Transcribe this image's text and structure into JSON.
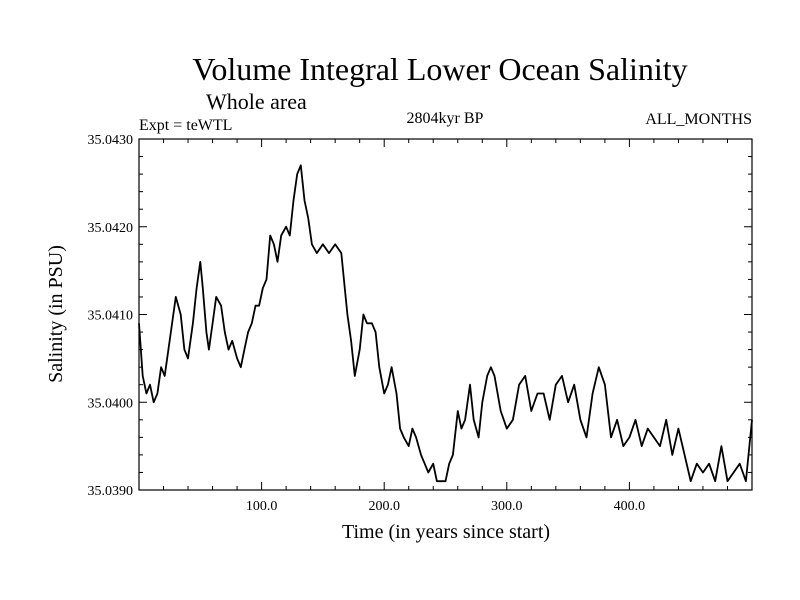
{
  "chart_data": {
    "type": "line",
    "title": "Volume Integral Lower Ocean Salinity",
    "subtitle": "Whole area",
    "experiment_label": "Expt = teWTL",
    "period_label": "2804kyr BP",
    "months_label": "ALL_MONTHS",
    "xlabel": "Time (in years since start)",
    "ylabel": "Salinity (in PSU)",
    "xlim": [
      0,
      500
    ],
    "ylim": [
      35.039,
      35.043
    ],
    "x_ticks": [
      100,
      200,
      300,
      400
    ],
    "x_tick_labels": [
      "100.0",
      "200.0",
      "300.0",
      "400.0"
    ],
    "y_ticks": [
      35.039,
      35.04,
      35.041,
      35.042,
      35.043
    ],
    "y_tick_labels": [
      "35.0390",
      "35.0400",
      "35.0410",
      "35.0420",
      "35.0430"
    ],
    "grid": false,
    "line_color": "#000000",
    "series": [
      {
        "name": "Salinity",
        "x": [
          0,
          3,
          6,
          9,
          12,
          15,
          18,
          21,
          24,
          27,
          30,
          34,
          37,
          40,
          44,
          47,
          50,
          52,
          55,
          57,
          60,
          63,
          67,
          70,
          73,
          76,
          80,
          83,
          86,
          89,
          92,
          95,
          98,
          101,
          104,
          107,
          110,
          113,
          116,
          120,
          123,
          126,
          129,
          132,
          135,
          138,
          141,
          145,
          150,
          155,
          160,
          165,
          170,
          173,
          176,
          180,
          183,
          186,
          190,
          193,
          196,
          200,
          203,
          206,
          210,
          213,
          216,
          220,
          223,
          226,
          230,
          233,
          236,
          240,
          243,
          246,
          250,
          253,
          256,
          260,
          263,
          266,
          270,
          273,
          277,
          280,
          284,
          287,
          290,
          295,
          300,
          305,
          310,
          315,
          320,
          325,
          330,
          335,
          340,
          345,
          350,
          355,
          360,
          365,
          370,
          375,
          380,
          385,
          390,
          395,
          400,
          405,
          410,
          415,
          420,
          425,
          430,
          435,
          440,
          445,
          450,
          455,
          460,
          465,
          470,
          475,
          480,
          485,
          490,
          495,
          500
        ],
        "values": [
          35.0409,
          35.0403,
          35.0401,
          35.0402,
          35.04,
          35.0401,
          35.0404,
          35.0403,
          35.0406,
          35.0409,
          35.0412,
          35.041,
          35.0406,
          35.0405,
          35.0409,
          35.0413,
          35.0416,
          35.0413,
          35.0408,
          35.0406,
          35.0409,
          35.0412,
          35.0411,
          35.0408,
          35.0406,
          35.0407,
          35.0405,
          35.0404,
          35.0406,
          35.0408,
          35.0409,
          35.0411,
          35.0411,
          35.0413,
          35.0414,
          35.0419,
          35.0418,
          35.0416,
          35.0419,
          35.042,
          35.0419,
          35.0423,
          35.0426,
          35.0427,
          35.0423,
          35.0421,
          35.0418,
          35.0417,
          35.0418,
          35.0417,
          35.0418,
          35.0417,
          35.041,
          35.0407,
          35.0403,
          35.0406,
          35.041,
          35.0409,
          35.0409,
          35.0408,
          35.0404,
          35.0401,
          35.0402,
          35.0404,
          35.0401,
          35.0397,
          35.0396,
          35.0395,
          35.0397,
          35.0396,
          35.0394,
          35.0393,
          35.0392,
          35.0393,
          35.0391,
          35.0391,
          35.0391,
          35.0393,
          35.0394,
          35.0399,
          35.0397,
          35.0398,
          35.0402,
          35.0398,
          35.0396,
          35.04,
          35.0403,
          35.0404,
          35.0403,
          35.0399,
          35.0397,
          35.0398,
          35.0402,
          35.0403,
          35.0399,
          35.0401,
          35.0401,
          35.0398,
          35.0402,
          35.0403,
          35.04,
          35.0402,
          35.0398,
          35.0396,
          35.0401,
          35.0404,
          35.0402,
          35.0396,
          35.0398,
          35.0395,
          35.0396,
          35.0398,
          35.0395,
          35.0397,
          35.0396,
          35.0395,
          35.0398,
          35.0394,
          35.0397,
          35.0394,
          35.0391,
          35.0393,
          35.0392,
          35.0393,
          35.0391,
          35.0395,
          35.0391,
          35.0392,
          35.0393,
          35.0391,
          35.0398
        ]
      }
    ]
  }
}
